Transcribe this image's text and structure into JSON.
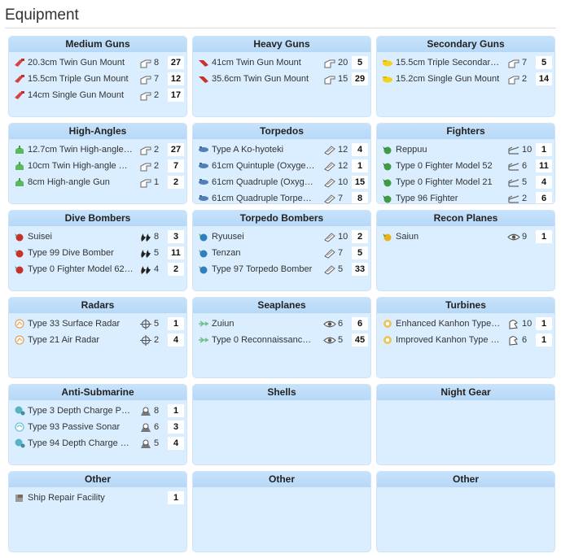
{
  "page": {
    "title": "Equipment"
  },
  "panels": [
    {
      "title": "Medium Guns",
      "items": [
        {
          "name": "20.3cm Twin Gun Mount",
          "stat": "8",
          "count": "27",
          "icon": "red-gun-icon",
          "stat_icon": "firepower-icon"
        },
        {
          "name": "15.5cm Triple Gun Mount",
          "stat": "7",
          "count": "12",
          "icon": "red-gun-icon",
          "stat_icon": "firepower-icon"
        },
        {
          "name": "14cm Single Gun Mount",
          "stat": "2",
          "count": "17",
          "icon": "red-gun-icon",
          "stat_icon": "firepower-icon"
        }
      ]
    },
    {
      "title": "Heavy Guns",
      "items": [
        {
          "name": "41cm Twin Gun Mount",
          "stat": "20",
          "count": "5",
          "icon": "heavy-gun-icon",
          "stat_icon": "firepower-icon"
        },
        {
          "name": "35.6cm Twin Gun Mount",
          "stat": "15",
          "count": "29",
          "icon": "heavy-gun-icon",
          "stat_icon": "firepower-icon"
        }
      ]
    },
    {
      "title": "Secondary Guns",
      "items": [
        {
          "name": "15.5cm Triple Secondar…",
          "stat": "7",
          "count": "5",
          "icon": "yellow-gun-icon",
          "stat_icon": "firepower-icon"
        },
        {
          "name": "15.2cm Single Gun Mount",
          "stat": "2",
          "count": "14",
          "icon": "yellow-gun-icon",
          "stat_icon": "firepower-icon"
        }
      ]
    },
    {
      "title": "High-Angles",
      "items": [
        {
          "name": "12.7cm Twin High-angle…",
          "stat": "2",
          "count": "27",
          "icon": "green-gun-icon",
          "stat_icon": "firepower-icon"
        },
        {
          "name": "10cm Twin High-angle …",
          "stat": "2",
          "count": "7",
          "icon": "green-gun-icon",
          "stat_icon": "firepower-icon"
        },
        {
          "name": "8cm High-angle Gun",
          "stat": "1",
          "count": "2",
          "icon": "green-gun-icon",
          "stat_icon": "firepower-icon"
        }
      ]
    },
    {
      "title": "Torpedos",
      "items": [
        {
          "name": "Type A Ko-hyoteki",
          "stat": "12",
          "count": "4",
          "icon": "torpedo-icon",
          "stat_icon": "torpedo-stat-icon"
        },
        {
          "name": "61cm Quintuple (Oxyge…",
          "stat": "12",
          "count": "1",
          "icon": "torpedo-icon",
          "stat_icon": "torpedo-stat-icon"
        },
        {
          "name": "61cm Quadruple (Oxyg…",
          "stat": "10",
          "count": "15",
          "icon": "torpedo-icon",
          "stat_icon": "torpedo-stat-icon"
        },
        {
          "name": "61cm Quadruple Torpe…",
          "stat": "7",
          "count": "8",
          "icon": "torpedo-icon",
          "stat_icon": "torpedo-stat-icon"
        }
      ]
    },
    {
      "title": "Fighters",
      "items": [
        {
          "name": "Reppuu",
          "stat": "10",
          "count": "1",
          "icon": "fighter-icon",
          "stat_icon": "antiair-icon"
        },
        {
          "name": "Type 0 Fighter Model 52",
          "stat": "6",
          "count": "11",
          "icon": "fighter-icon",
          "stat_icon": "antiair-icon"
        },
        {
          "name": "Type 0 Fighter Model 21",
          "stat": "5",
          "count": "4",
          "icon": "fighter-icon",
          "stat_icon": "antiair-icon"
        },
        {
          "name": "Type 96 Fighter",
          "stat": "2",
          "count": "6",
          "icon": "fighter-icon",
          "stat_icon": "antiair-icon"
        }
      ]
    },
    {
      "title": "Dive Bombers",
      "items": [
        {
          "name": "Suisei",
          "stat": "8",
          "count": "3",
          "icon": "dive-bomber-icon",
          "stat_icon": "bombing-icon"
        },
        {
          "name": "Type 99 Dive Bomber",
          "stat": "5",
          "count": "11",
          "icon": "dive-bomber-icon",
          "stat_icon": "bombing-icon"
        },
        {
          "name": "Type 0 Fighter Model 62…",
          "stat": "4",
          "count": "2",
          "icon": "dive-bomber-icon",
          "stat_icon": "bombing-icon"
        }
      ]
    },
    {
      "title": "Torpedo Bombers",
      "items": [
        {
          "name": "Ryuusei",
          "stat": "10",
          "count": "2",
          "icon": "torpedo-bomber-icon",
          "stat_icon": "torpedo-stat-icon"
        },
        {
          "name": "Tenzan",
          "stat": "7",
          "count": "5",
          "icon": "torpedo-bomber-icon",
          "stat_icon": "torpedo-stat-icon"
        },
        {
          "name": "Type 97 Torpedo Bomber",
          "stat": "5",
          "count": "33",
          "icon": "torpedo-bomber-icon",
          "stat_icon": "torpedo-stat-icon"
        }
      ]
    },
    {
      "title": "Recon Planes",
      "items": [
        {
          "name": "Saiun",
          "stat": "9",
          "count": "1",
          "icon": "recon-plane-icon",
          "stat_icon": "line-of-sight-icon"
        }
      ]
    },
    {
      "title": "Radars",
      "items": [
        {
          "name": "Type 33 Surface Radar",
          "stat": "5",
          "count": "1",
          "icon": "radar-icon",
          "stat_icon": "accuracy-icon"
        },
        {
          "name": "Type 21 Air Radar",
          "stat": "2",
          "count": "4",
          "icon": "radar-icon",
          "stat_icon": "accuracy-icon"
        }
      ]
    },
    {
      "title": "Seaplanes",
      "items": [
        {
          "name": "Zuiun",
          "stat": "6",
          "count": "6",
          "icon": "seaplane-icon",
          "stat_icon": "line-of-sight-icon"
        },
        {
          "name": "Type 0 Reconnaissanc…",
          "stat": "5",
          "count": "45",
          "icon": "seaplane-icon",
          "stat_icon": "line-of-sight-icon"
        }
      ]
    },
    {
      "title": "Turbines",
      "items": [
        {
          "name": "Enhanced Kanhon Type…",
          "stat": "10",
          "count": "1",
          "icon": "turbine-icon",
          "stat_icon": "evasion-icon"
        },
        {
          "name": "Improved Kanhon Type …",
          "stat": "6",
          "count": "1",
          "icon": "turbine-icon",
          "stat_icon": "evasion-icon"
        }
      ]
    },
    {
      "title": "Anti-Submarine",
      "items": [
        {
          "name": "Type 3 Depth Charge P…",
          "stat": "8",
          "count": "1",
          "icon": "depth-charge-icon",
          "stat_icon": "asw-icon"
        },
        {
          "name": "Type 93 Passive Sonar",
          "stat": "6",
          "count": "3",
          "icon": "sonar-icon",
          "stat_icon": "asw-icon"
        },
        {
          "name": "Type 94 Depth Charge …",
          "stat": "5",
          "count": "4",
          "icon": "depth-charge-icon",
          "stat_icon": "asw-icon"
        }
      ]
    },
    {
      "title": "Shells",
      "items": []
    },
    {
      "title": "Night Gear",
      "items": []
    },
    {
      "title": "Other",
      "items": [
        {
          "name": "Ship Repair Facility",
          "stat": "",
          "count": "1",
          "icon": "repair-facility-icon",
          "stat_icon": ""
        }
      ]
    },
    {
      "title": "Other",
      "items": []
    },
    {
      "title": "Other",
      "items": []
    }
  ]
}
